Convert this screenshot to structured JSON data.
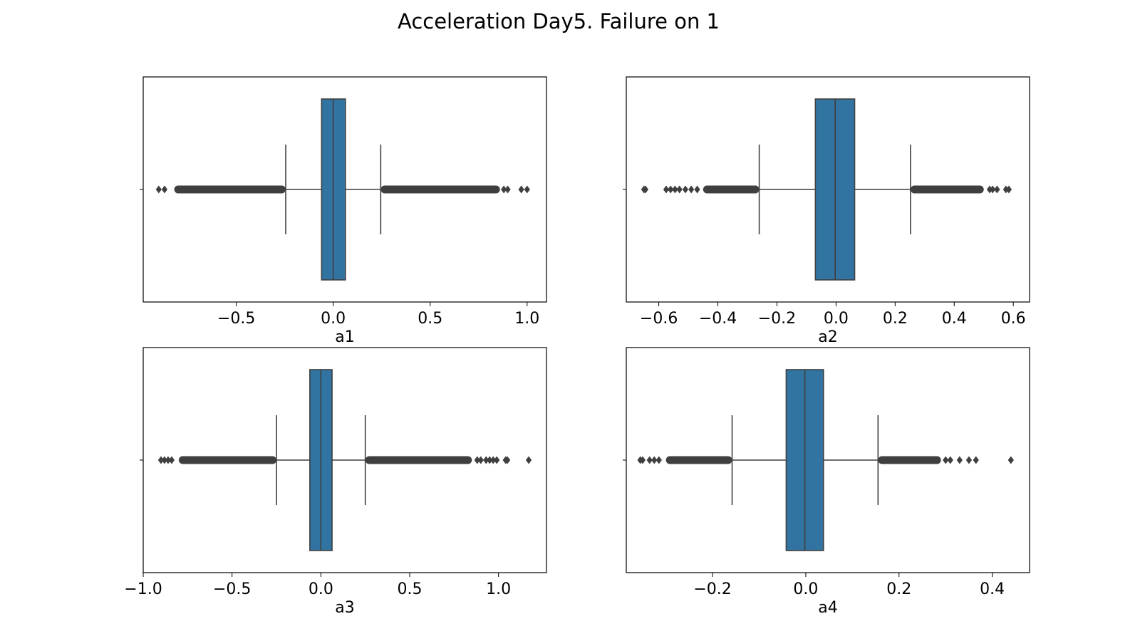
{
  "figure": {
    "title": "Acceleration Day5. Failure on 1"
  },
  "colors": {
    "box_fill": "#3274a1",
    "line": "#3f3f3f",
    "frame": "#000000",
    "background": "#ffffff"
  },
  "chart_data": [
    {
      "type": "boxplot",
      "orientation": "horizontal",
      "xlabel": "a1",
      "xlim": [
        -0.98,
        1.1
      ],
      "xticks": [
        -0.5,
        0.0,
        0.5,
        1.0
      ],
      "xtick_labels": [
        "−0.5",
        "0.0",
        "0.5",
        "1.0"
      ],
      "box": {
        "whisker_low": -0.245,
        "q1": -0.06,
        "median": 0.0,
        "q3": 0.063,
        "whisker_high": 0.245
      },
      "outliers_low_range": [
        -0.82,
        -0.245
      ],
      "outliers_high_range": [
        0.245,
        0.86
      ],
      "outliers_sparse": [
        -0.9,
        -0.87,
        0.88,
        0.9,
        0.97,
        1.0
      ]
    },
    {
      "type": "boxplot",
      "orientation": "horizontal",
      "xlabel": "a2",
      "xlim": [
        -0.71,
        0.655
      ],
      "xticks": [
        -0.6,
        -0.4,
        -0.2,
        0.0,
        0.2,
        0.4,
        0.6
      ],
      "xtick_labels": [
        "−0.6",
        "−0.4",
        "−0.2",
        "0.0",
        "0.2",
        "0.4",
        "0.6"
      ],
      "box": {
        "whisker_low": -0.26,
        "q1": -0.07,
        "median": -0.003,
        "q3": 0.063,
        "whisker_high": 0.252
      },
      "outliers_low_range": [
        -0.45,
        -0.26
      ],
      "outliers_high_range": [
        0.252,
        0.5
      ],
      "outliers_sparse": [
        -0.65,
        -0.645,
        -0.575,
        -0.56,
        -0.545,
        -0.53,
        -0.51,
        -0.49,
        -0.47,
        0.52,
        0.53,
        0.545,
        0.575,
        0.585
      ]
    },
    {
      "type": "boxplot",
      "orientation": "horizontal",
      "xlabel": "a3",
      "xlim": [
        -1.0,
        1.27
      ],
      "xticks": [
        -1.0,
        -0.5,
        0.0,
        0.5,
        1.0
      ],
      "xtick_labels": [
        "−1.0",
        "−0.5",
        "0.0",
        "0.5",
        "1.0"
      ],
      "box": {
        "whisker_low": -0.25,
        "q1": -0.062,
        "median": 0.0,
        "q3": 0.063,
        "whisker_high": 0.25
      },
      "outliers_low_range": [
        -0.8,
        -0.25
      ],
      "outliers_high_range": [
        0.25,
        0.85
      ],
      "outliers_sparse": [
        -0.9,
        -0.88,
        -0.86,
        -0.84,
        0.88,
        0.9,
        0.93,
        0.95,
        0.97,
        0.99,
        1.04,
        1.05,
        1.17
      ]
    },
    {
      "type": "boxplot",
      "orientation": "horizontal",
      "xlabel": "a4",
      "xlim": [
        -0.385,
        0.48
      ],
      "xticks": [
        -0.2,
        0.0,
        0.2,
        0.4
      ],
      "xtick_labels": [
        "−0.2",
        "0.0",
        "0.2",
        "0.4"
      ],
      "box": {
        "whisker_low": -0.158,
        "q1": -0.042,
        "median": -0.002,
        "q3": 0.038,
        "whisker_high": 0.155
      },
      "outliers_low_range": [
        -0.3,
        -0.158
      ],
      "outliers_high_range": [
        0.155,
        0.29
      ],
      "outliers_sparse": [
        -0.355,
        -0.35,
        -0.335,
        -0.325,
        -0.315,
        0.3,
        0.31,
        0.33,
        0.35,
        0.365,
        0.44
      ]
    }
  ]
}
